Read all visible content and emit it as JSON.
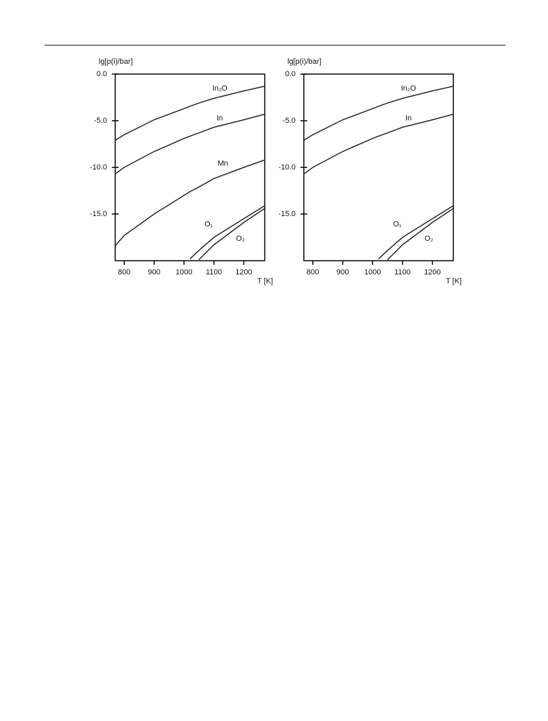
{
  "chart_data": [
    {
      "type": "line",
      "y_label": "lg[p(i)/bar]",
      "x_label": "T [K]",
      "x": [
        770,
        800,
        900,
        1000,
        1020,
        1050,
        1100,
        1200,
        1270
      ],
      "xlim": [
        770,
        1270
      ],
      "xticks": [
        800,
        900,
        1000,
        1100,
        1200
      ],
      "ylim": [
        -20,
        0
      ],
      "yticks": [
        {
          "value": 0,
          "label": "0.0"
        },
        {
          "value": -5,
          "label": "-5.0"
        },
        {
          "value": -10,
          "label": "-10.0"
        },
        {
          "value": -15,
          "label": "-15.0"
        }
      ],
      "series": [
        {
          "name": "In₂O",
          "color": "#222222",
          "values": [
            -7.1,
            -6.5,
            -4.9,
            -3.7,
            -3.45,
            -3.1,
            -2.6,
            -1.8,
            -1.3
          ]
        },
        {
          "name": "In",
          "color": "#222222",
          "values": [
            -10.7,
            -10.0,
            -8.3,
            -6.9,
            -6.65,
            -6.3,
            -5.7,
            -4.9,
            -4.3
          ]
        },
        {
          "name": "Mn",
          "color": "#222222",
          "values": [
            -18.4,
            -17.3,
            -15.0,
            -13.0,
            -12.6,
            -12.1,
            -11.2,
            -10.0,
            -9.2
          ]
        },
        {
          "name": "O₁",
          "color": "#222222",
          "values": [
            null,
            null,
            null,
            null,
            -19.8,
            -18.9,
            -17.5,
            -15.5,
            -14.1
          ]
        },
        {
          "name": "O₂",
          "color": "#222222",
          "values": [
            null,
            null,
            null,
            null,
            null,
            -19.9,
            -18.3,
            -15.9,
            -14.4
          ]
        }
      ]
    },
    {
      "type": "line",
      "y_label": "lg[p(i)/bar]",
      "x_label": "T [K]",
      "x": [
        770,
        800,
        900,
        1000,
        1020,
        1050,
        1100,
        1200,
        1270
      ],
      "xlim": [
        770,
        1270
      ],
      "xticks": [
        800,
        900,
        1000,
        1100,
        1200
      ],
      "ylim": [
        -20,
        0
      ],
      "yticks": [
        {
          "value": 0,
          "label": "0.0"
        },
        {
          "value": -5,
          "label": "-5.0"
        },
        {
          "value": -10,
          "label": "-10.0"
        },
        {
          "value": -15,
          "label": "-15.0"
        }
      ],
      "series": [
        {
          "name": "In₂O",
          "color": "#222222",
          "values": [
            -7.1,
            -6.5,
            -4.9,
            -3.7,
            -3.45,
            -3.1,
            -2.6,
            -1.8,
            -1.3
          ]
        },
        {
          "name": "In",
          "color": "#222222",
          "values": [
            -10.7,
            -10.0,
            -8.3,
            -6.9,
            -6.65,
            -6.3,
            -5.7,
            -4.9,
            -4.3
          ]
        },
        {
          "name": "O₁",
          "color": "#222222",
          "values": [
            null,
            null,
            null,
            null,
            -19.8,
            -18.9,
            -17.5,
            -15.5,
            -14.1
          ]
        },
        {
          "name": "O₂",
          "color": "#222222",
          "values": [
            null,
            null,
            null,
            null,
            null,
            -19.9,
            -18.3,
            -15.9,
            -14.4
          ]
        }
      ]
    }
  ]
}
